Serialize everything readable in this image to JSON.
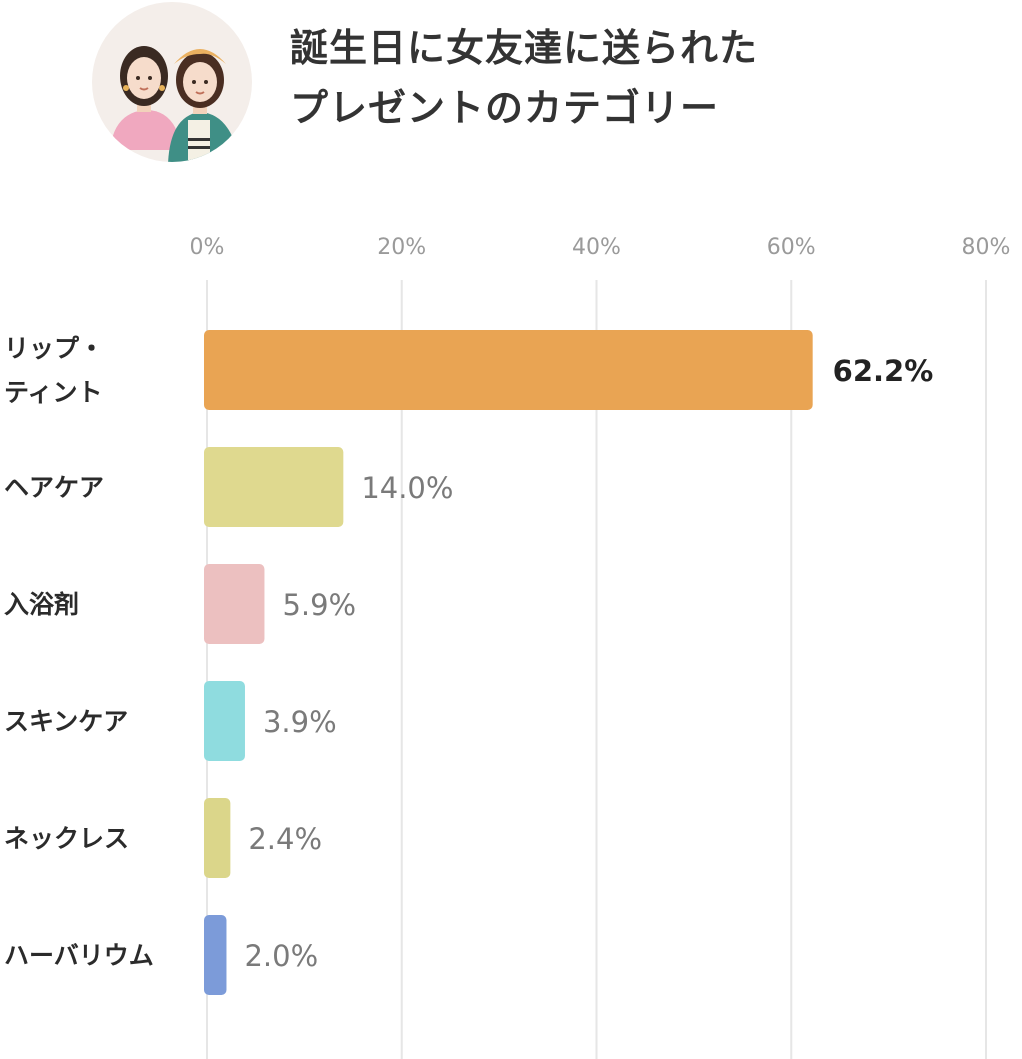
{
  "header": {
    "title_line1": "誕生日に女友達に送られた",
    "title_line2": "プレゼントのカテゴリー",
    "avatar_icon": "two-women-illustration-icon"
  },
  "chart_data": {
    "type": "bar",
    "orientation": "horizontal",
    "title": "誕生日に女友達に送られたプレゼントのカテゴリー",
    "xlim": [
      0,
      80
    ],
    "x_ticks": [
      "0%",
      "20%",
      "40%",
      "60%",
      "80%"
    ],
    "x_tick_values": [
      0,
      20,
      40,
      60,
      80
    ],
    "grid": true,
    "categories": [
      "リップ・ティント",
      "ヘアケア",
      "入浴剤",
      "スキンケア",
      "ネックレス",
      "ハーバリウム"
    ],
    "category_lines": [
      [
        "リップ・",
        "ティント"
      ],
      [
        "ヘアケア"
      ],
      [
        "入浴剤"
      ],
      [
        "スキンケア"
      ],
      [
        "ネックレス"
      ],
      [
        "ハーバリウム"
      ]
    ],
    "values": [
      62.2,
      14.0,
      5.9,
      3.9,
      2.4,
      2.0
    ],
    "value_labels": [
      "62.2%",
      "14.0%",
      "5.9%",
      "3.9%",
      "2.4%",
      "2.0%"
    ],
    "colors": [
      "#e9a453",
      "#dfd98f",
      "#ecc0c0",
      "#8fdcdf",
      "#dbd68a",
      "#7c9bd9"
    ]
  }
}
